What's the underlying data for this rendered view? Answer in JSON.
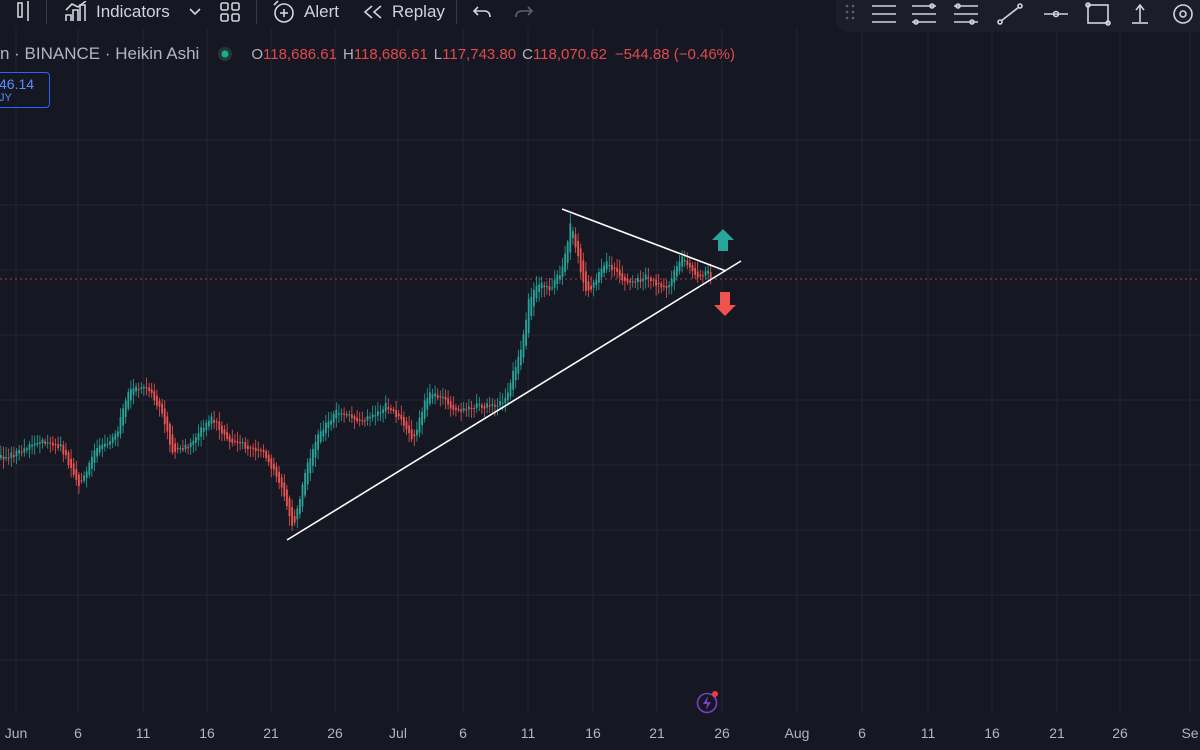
{
  "toolbar": {
    "indicators_label": "Indicators",
    "alert_label": "Alert",
    "replay_label": "Replay"
  },
  "legend": {
    "symbol": "n · BINANCE · Heikin Ashi",
    "open_key": "O",
    "open": "118,686.61",
    "high_key": "H",
    "high": "118,686.61",
    "low_key": "L",
    "low": "117,743.80",
    "close_key": "C",
    "close": "118,070.62",
    "change": "−544.88 (−0.46%)"
  },
  "order_badge": {
    "price": "46.14",
    "side": "JY"
  },
  "x_axis": {
    "labels": [
      "Jun",
      "6",
      "11",
      "16",
      "21",
      "26",
      "Jul",
      "6",
      "11",
      "16",
      "21",
      "26",
      "Aug",
      "6",
      "11",
      "16",
      "21",
      "26",
      "Se"
    ]
  },
  "colors": {
    "up": "#26a69a",
    "down": "#ef5350",
    "background": "#151823",
    "grid": "#232632",
    "price_line": "#f23645"
  },
  "chart_data": {
    "type": "candlestick",
    "style": "Heikin Ashi",
    "exchange": "BINANCE",
    "interval_days_between_ticks": 5,
    "last": {
      "open": 118686.61,
      "high": 118686.61,
      "low": 117743.8,
      "close": 118070.62
    },
    "change": -544.88,
    "change_percent": -0.46,
    "pattern": "symmetrical triangle",
    "signals": [
      "up-arrow",
      "down-arrow"
    ]
  }
}
